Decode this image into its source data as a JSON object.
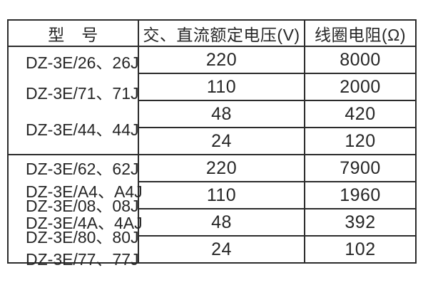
{
  "table": {
    "headers": {
      "model": "型　号",
      "voltage": "交、直流额定电压(V)",
      "resistance": "线圈电阻(Ω)"
    },
    "sections": [
      {
        "models": [
          "DZ-3E/26、26J",
          "DZ-3E/71、71J",
          "DZ-3E/44、44J"
        ],
        "rows": [
          {
            "voltage": "220",
            "resistance": "8000"
          },
          {
            "voltage": "110",
            "resistance": "2000"
          },
          {
            "voltage": "48",
            "resistance": "420"
          },
          {
            "voltage": "24",
            "resistance": "120"
          }
        ]
      },
      {
        "models": [
          "DZ-3E/62、62J",
          "DZ-3E/A4、A4J",
          "DZ-3E/08、08J",
          "DZ-3E/4A、4AJ",
          "DZ-3E/80、80J",
          "DZ-3E/77、77J"
        ],
        "rows": [
          {
            "voltage": "220",
            "resistance": "7900"
          },
          {
            "voltage": "110",
            "resistance": "1960"
          },
          {
            "voltage": "48",
            "resistance": "392"
          },
          {
            "voltage": "24",
            "resistance": "102"
          }
        ]
      }
    ]
  },
  "colors": {
    "border": "#2b2b2b",
    "text": "#262626",
    "background": "#ffffff"
  }
}
